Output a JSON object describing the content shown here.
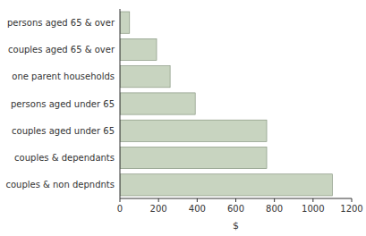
{
  "chart_data": {
    "type": "bar",
    "orientation": "horizontal",
    "categories": [
      "couples & non depndnts",
      "couples & dependants",
      "couples aged under 65",
      "persons aged under 65",
      "one parent households",
      "couples aged 65 & over",
      "persons aged 65 & over"
    ],
    "values": [
      1100,
      760,
      760,
      390,
      260,
      190,
      50
    ],
    "color": "#c8d4c0",
    "xlabel": "$",
    "xlim": [
      0,
      1200
    ],
    "xticks": [
      0,
      200,
      400,
      600,
      800,
      1000,
      1200
    ],
    "grid": false
  }
}
